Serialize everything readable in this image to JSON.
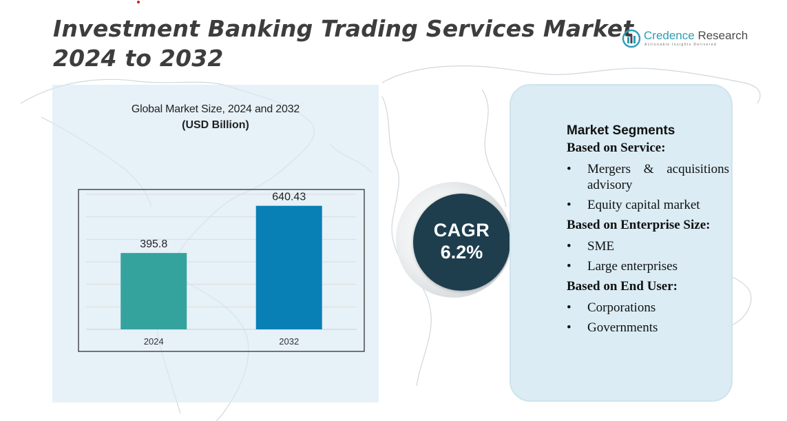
{
  "title": {
    "line1": "Investment Banking Trading Services Market",
    "line2": "2024 to 2032"
  },
  "logo": {
    "brand": "Credence",
    "name_rest": " Research",
    "tagline": "Actionable Insights Delivered"
  },
  "chart_heading": {
    "line1": "Global Market Size, 2024 and 2032",
    "line2": "(USD Billion)"
  },
  "colors": {
    "bar_2024": "#34a39e",
    "bar_2032": "#0880b5",
    "cagr_circle": "#1e3e4d",
    "title": "#3d3d3d"
  },
  "chart_data": {
    "type": "bar",
    "categories": [
      "2024",
      "2032"
    ],
    "values": [
      395.8,
      640.43
    ],
    "value_labels": [
      "395.8",
      "640.43"
    ],
    "ylim": [
      0,
      700
    ],
    "grid": true,
    "title": "Global Market Size, 2024 and 2032",
    "ylabel": "(USD Billion)",
    "xlabel": ""
  },
  "cagr": {
    "label": "CAGR",
    "value": "6.2%"
  },
  "segments": {
    "title": "Market Segments",
    "groups": [
      {
        "heading": "Based on Service:",
        "items": [
          "Mergers & acquisitions advisory",
          "Equity capital market"
        ]
      },
      {
        "heading": "Based on Enterprise Size:",
        "items": [
          "SME",
          "Large enterprises"
        ]
      },
      {
        "heading": "Based on End User:",
        "items": [
          "Corporations",
          "Governments"
        ]
      }
    ]
  }
}
